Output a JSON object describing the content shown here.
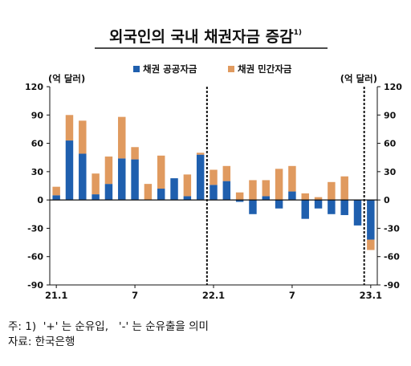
{
  "chart_data": {
    "type": "bar",
    "stacked": true,
    "title": "외국인의 국내 채권자금 증감",
    "title_note": "1)",
    "left_unit": "(억 달러)",
    "right_unit": "(억 달러)",
    "ylim": [
      -90,
      120
    ],
    "yticks": [
      -90,
      -60,
      -30,
      0,
      30,
      60,
      90,
      120
    ],
    "xtick_labels": [
      {
        "index": 0,
        "label": "21.1"
      },
      {
        "index": 6,
        "label": "7"
      },
      {
        "index": 12,
        "label": "22.1"
      },
      {
        "index": 18,
        "label": "7"
      },
      {
        "index": 24,
        "label": "23.1"
      }
    ],
    "dividers_after_index": [
      11,
      23
    ],
    "categories": [
      "21.1",
      "21.2",
      "21.3",
      "21.4",
      "21.5",
      "21.6",
      "21.7",
      "21.8",
      "21.9",
      "21.10",
      "21.11",
      "21.12",
      "22.1",
      "22.2",
      "22.3",
      "22.4",
      "22.5",
      "22.6",
      "22.7",
      "22.8",
      "22.9",
      "22.10",
      "22.11",
      "22.12",
      "23.1"
    ],
    "series": [
      {
        "name": "채권 공공자금",
        "color": "#1f5fae",
        "values": [
          5,
          63,
          49,
          6,
          17,
          44,
          43,
          0,
          12,
          23,
          4,
          48,
          16,
          20,
          -2,
          -15,
          4,
          -9,
          9,
          -20,
          -9,
          -15,
          -16,
          -27,
          -42
        ]
      },
      {
        "name": "채권 민간자금",
        "color": "#e09a5f",
        "values": [
          9,
          27,
          35,
          22,
          29,
          44,
          13,
          17,
          35,
          0,
          23,
          2,
          16,
          16,
          8,
          21,
          17,
          33,
          27,
          7,
          3,
          19,
          25,
          0,
          -11
        ]
      }
    ]
  },
  "footnote": "주: 1)  '+' 는 순유입,   '-' 는 순유출을 의미",
  "source": "자료: 한국은행"
}
